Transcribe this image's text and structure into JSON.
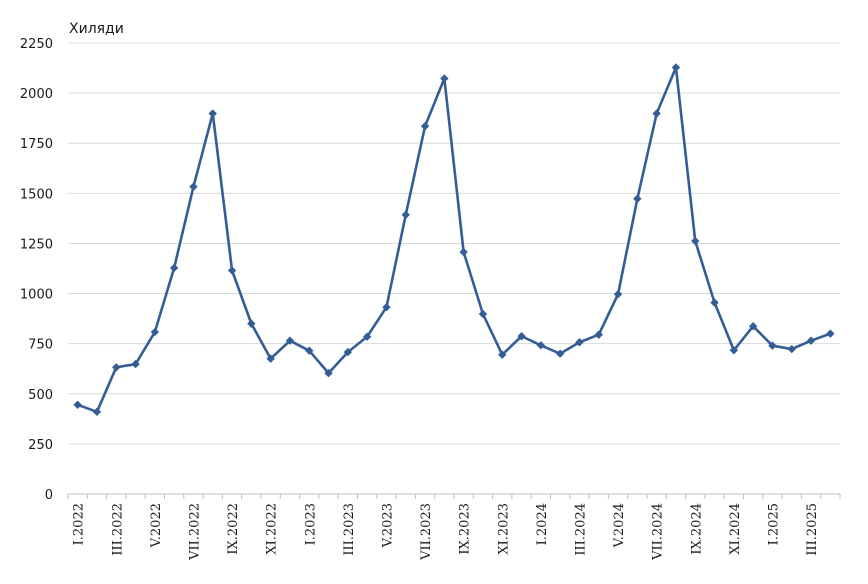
{
  "chart_data": {
    "type": "line",
    "unit_label": "Хиляди",
    "ylim": [
      0,
      2250
    ],
    "y_ticks": [
      0,
      250,
      500,
      750,
      1000,
      1250,
      1500,
      1750,
      2000,
      2250
    ],
    "grid": true,
    "legend": "none",
    "line_color": "#355D95",
    "marker": "diamond",
    "categories": [
      "I.2022",
      "II.2022",
      "III.2022",
      "IV.2022",
      "V.2022",
      "VI.2022",
      "VII.2022",
      "VIII.2022",
      "IX.2022",
      "X.2022",
      "XI.2022",
      "XII.2022",
      "I.2023",
      "II.2023",
      "III.2023",
      "IV.2023",
      "V.2023",
      "VI.2023",
      "VII.2023",
      "VIII.2023",
      "IX.2023",
      "X.2023",
      "XI.2023",
      "XII.2023",
      "I.2024",
      "II.2024",
      "III.2024",
      "IV.2024",
      "V.2024",
      "VI.2024",
      "VII.2024",
      "VIII.2024",
      "IX.2024",
      "X.2024",
      "XI.2024",
      "XII.2024",
      "I.2025",
      "II.2025",
      "III.2025",
      "IV.2025"
    ],
    "x_tick_labels": [
      "I.2022",
      "III.2022",
      "V.2022",
      "VII.2022",
      "IX.2022",
      "XI.2022",
      "I.2023",
      "III.2023",
      "V.2023",
      "VII.2023",
      "IX.2023",
      "XI.2023",
      "I.2024",
      "III.2024",
      "V.2024",
      "VII.2024",
      "IX.2024",
      "XI.2024",
      "I.2025",
      "III.2025"
    ],
    "values": [
      445,
      410,
      632,
      648,
      808,
      1128,
      1533,
      1898,
      1115,
      850,
      675,
      765,
      715,
      603,
      708,
      785,
      932,
      1393,
      1835,
      2073,
      1207,
      898,
      695,
      787,
      742,
      700,
      757,
      795,
      997,
      1473,
      1898,
      2128,
      1262,
      955,
      717,
      837,
      740,
      723,
      765,
      800
    ]
  }
}
